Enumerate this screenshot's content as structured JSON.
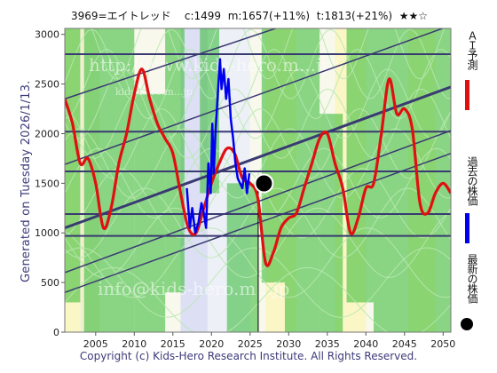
{
  "header": {
    "ticker": "3969=エイトレッド",
    "current": "c:1499",
    "medium": "m:1657(+11%)",
    "long": "t:1813(+21%)",
    "stars": "★★☆"
  },
  "generated_label": "Generated on Tuesday 2026/1/13.",
  "footer": "Copyright (c) Kids-Hero Research Institute. All Rights Reserved.",
  "watermark": [
    "http://www.kids-hero.m...jp/",
    "kids-hero.m...jp",
    "info@kids-hero.m...jp"
  ],
  "legend": {
    "ai": "ＡＩ予測",
    "past": "過去の株価",
    "latest": "最新の株価"
  },
  "colors": {
    "ai": "#e01010",
    "past": "#0000ee",
    "latest": "#000000",
    "band_fill": "#2db82d",
    "channel": "#3a3a72"
  },
  "chart_data": {
    "type": "line",
    "title": "3969=エイトレッド",
    "xlabel": "",
    "ylabel": "",
    "xlim": [
      2001,
      2051
    ],
    "ylim": [
      0,
      3060
    ],
    "xticks": [
      2005,
      2010,
      2015,
      2020,
      2025,
      2030,
      2035,
      2040,
      2045,
      2050
    ],
    "yticks": [
      0,
      500,
      1000,
      1500,
      2000,
      2500,
      3000
    ],
    "horizontal_levels": [
      970,
      1190,
      1620,
      2020,
      2800
    ],
    "channel_lines": [
      {
        "x": [
          2001,
          2051
        ],
        "y": [
          1050,
          2470
        ],
        "heavy": true
      },
      {
        "x": [
          2001,
          2051
        ],
        "y": [
          2350,
          3650
        ]
      },
      {
        "x": [
          2001,
          2051
        ],
        "y": [
          1690,
          3090
        ]
      },
      {
        "x": [
          2001,
          2051
        ],
        "y": [
          600,
          2030
        ]
      },
      {
        "x": [
          2001,
          2051
        ],
        "y": [
          400,
          1800
        ]
      }
    ],
    "vertical_marker_year": 2026.05,
    "series": [
      {
        "name": "ＡＩ予測",
        "x": [
          2001,
          2002,
          2003,
          2004,
          2005,
          2006,
          2007,
          2008,
          2009,
          2010,
          2011,
          2012,
          2013,
          2014,
          2015,
          2016,
          2017,
          2018,
          2019,
          2020,
          2021,
          2022,
          2023,
          2024,
          2025,
          2026,
          2027,
          2028,
          2029,
          2030,
          2031,
          2032,
          2033,
          2034,
          2035,
          2036,
          2037,
          2038,
          2039,
          2040,
          2041,
          2042,
          2043,
          2044,
          2045,
          2046,
          2047,
          2048,
          2049,
          2050,
          2051
        ],
        "values": [
          2350,
          2100,
          1700,
          1750,
          1500,
          1050,
          1250,
          1700,
          2000,
          2400,
          2650,
          2350,
          2100,
          1950,
          1800,
          1400,
          1050,
          1000,
          1250,
          1500,
          1700,
          1850,
          1800,
          1550,
          1500,
          1350,
          700,
          800,
          1050,
          1150,
          1200,
          1450,
          1700,
          1950,
          2000,
          1700,
          1450,
          1000,
          1150,
          1450,
          1500,
          2000,
          2550,
          2200,
          2250,
          2050,
          1300,
          1200,
          1400,
          1500,
          1400
        ]
      },
      {
        "name": "過去の株価",
        "x": [
          2016.8,
          2017.2,
          2017.5,
          2017.9,
          2018.3,
          2018.7,
          2019.0,
          2019.3,
          2019.6,
          2019.9,
          2020.1,
          2020.3,
          2020.5,
          2020.7,
          2020.9,
          2021.1,
          2021.3,
          2021.6,
          2021.9,
          2022.2,
          2022.5,
          2022.8,
          2023.1,
          2023.4,
          2023.7,
          2024.0,
          2024.3,
          2024.6,
          2024.9
        ],
        "values": [
          1450,
          1050,
          1250,
          1000,
          1100,
          1300,
          1200,
          1050,
          1700,
          1400,
          2100,
          1600,
          2000,
          2250,
          2500,
          2750,
          2450,
          2650,
          2350,
          2550,
          2150,
          1950,
          1700,
          1550,
          1500,
          1450,
          1650,
          1400,
          1600
        ]
      }
    ],
    "latest_point": {
      "name": "最新の株価",
      "x": 2025.3,
      "y": 1499
    }
  }
}
